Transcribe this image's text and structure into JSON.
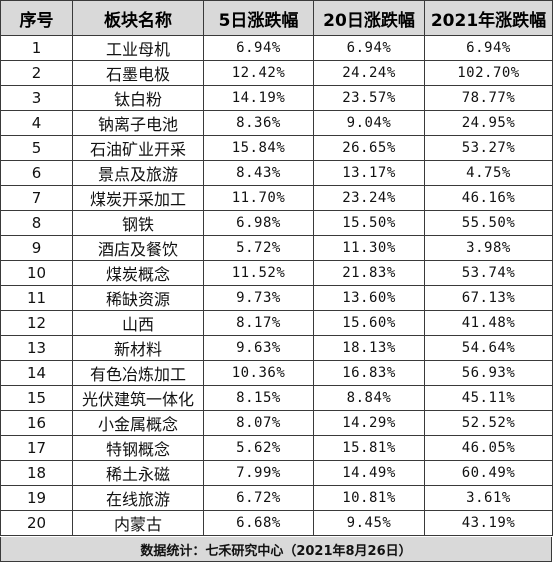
{
  "headers": [
    "序号",
    "板块名称",
    "5日涨跌幅",
    "20日涨跌幅",
    "2021年涨跌幅"
  ],
  "rows": [
    [
      "1",
      "工业母机",
      "6.94%",
      "6.94%",
      "6.94%"
    ],
    [
      "2",
      "石墨电极",
      "12.42%",
      "24.24%",
      "102.70%"
    ],
    [
      "3",
      "钛白粉",
      "14.19%",
      "23.57%",
      "78.77%"
    ],
    [
      "4",
      "钠离子电池",
      "8.36%",
      "9.04%",
      "24.95%"
    ],
    [
      "5",
      "石油矿业开采",
      "15.84%",
      "26.65%",
      "53.27%"
    ],
    [
      "6",
      "景点及旅游",
      "8.43%",
      "13.17%",
      "4.75%"
    ],
    [
      "7",
      "煤炭开采加工",
      "11.70%",
      "23.24%",
      "46.16%"
    ],
    [
      "8",
      "钢铁",
      "6.98%",
      "15.50%",
      "55.50%"
    ],
    [
      "9",
      "酒店及餐饮",
      "5.72%",
      "11.30%",
      "3.98%"
    ],
    [
      "10",
      "煤炭概念",
      "11.52%",
      "21.83%",
      "53.74%"
    ],
    [
      "11",
      "稀缺资源",
      "9.73%",
      "13.60%",
      "67.13%"
    ],
    [
      "12",
      "山西",
      "8.17%",
      "15.60%",
      "41.48%"
    ],
    [
      "13",
      "新材料",
      "9.63%",
      "18.13%",
      "54.64%"
    ],
    [
      "14",
      "有色冶炼加工",
      "10.36%",
      "16.83%",
      "56.93%"
    ],
    [
      "15",
      "光伏建筑一体化",
      "8.15%",
      "8.84%",
      "45.11%"
    ],
    [
      "16",
      "小金属概念",
      "8.07%",
      "14.29%",
      "52.52%"
    ],
    [
      "17",
      "特钢概念",
      "5.62%",
      "15.81%",
      "46.05%"
    ],
    [
      "18",
      "稀土永磁",
      "7.99%",
      "14.49%",
      "60.49%"
    ],
    [
      "19",
      "在线旅游",
      "6.72%",
      "10.81%",
      "3.61%"
    ],
    [
      "20",
      "内蒙古",
      "6.68%",
      "9.45%",
      "43.19%"
    ]
  ],
  "footer": "数据统计：七禾研究中心（2021年8月26日）"
}
